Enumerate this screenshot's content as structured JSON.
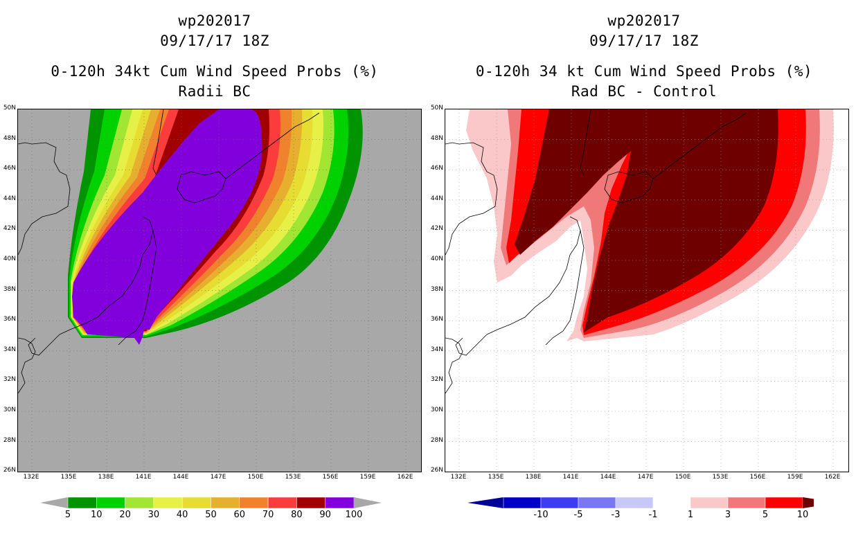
{
  "left_panel": {
    "storm": "wp202017",
    "datetime": "09/17/17 18Z",
    "product": "0-120h 34kt Cum Wind Speed Probs (%)",
    "subtitle": "Radii BC",
    "colorbar": {
      "labels": [
        "5",
        "10",
        "20",
        "30",
        "40",
        "50",
        "60",
        "70",
        "80",
        "90",
        "100"
      ],
      "colors": [
        "#009400",
        "#00d200",
        "#a0e632",
        "#e6f046",
        "#e6dc32",
        "#e6af2d",
        "#f0822d",
        "#fa3c3c",
        "#a00000",
        "#8200dc"
      ],
      "below_color": "#a8a8a8",
      "above_color": "#a8a8a8"
    }
  },
  "right_panel": {
    "storm": "wp202017",
    "datetime": "09/17/17 18Z",
    "product": "0-120h 34 kt Cum Wind Speed Probs (%)",
    "subtitle": "Rad BC - Control",
    "colorbar": {
      "labels": [
        "-10",
        "-5",
        "-3",
        "-1",
        "1",
        "3",
        "5",
        "10"
      ],
      "colors": [
        "#0000c8",
        "#3c3cf0",
        "#7878f0",
        "#c8c8f8",
        "#ffffff",
        "#fac8c8",
        "#f07878",
        "#ff0000"
      ],
      "below_color": "#000096",
      "above_color": "#6e0000"
    }
  },
  "axes": {
    "lat_labels": [
      "50N",
      "48N",
      "46N",
      "44N",
      "42N",
      "40N",
      "38N",
      "36N",
      "34N",
      "32N",
      "30N",
      "28N",
      "26N"
    ],
    "lon_labels": [
      "132E",
      "135E",
      "138E",
      "141E",
      "144E",
      "147E",
      "150E",
      "153E",
      "156E",
      "159E",
      "162E"
    ]
  }
}
